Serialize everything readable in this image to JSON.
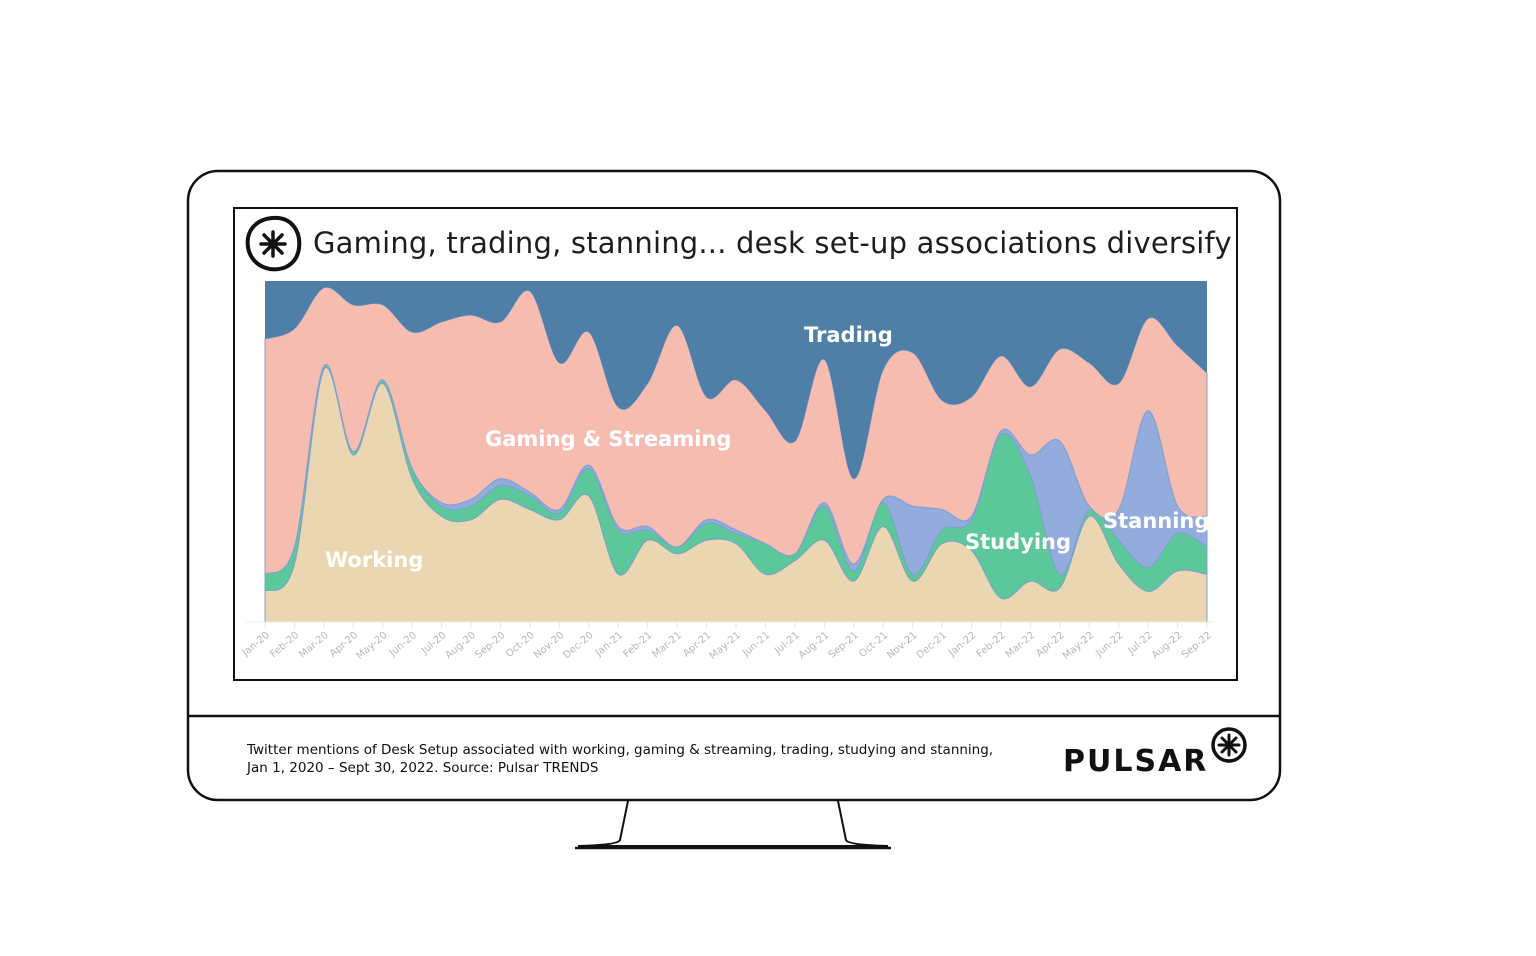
{
  "title": "Gaming, trading, stanning... desk set-up associations diversify",
  "caption": {
    "line1": "Twitter mentions of Desk Setup associated with working, gaming & streaming, trading, studying and stanning,",
    "line2": "Jan 1, 2020 – Sept 30, 2022. Source: Pulsar TRENDS"
  },
  "brand": "PULSAR",
  "chart_data": {
    "type": "area",
    "stacked": "percent",
    "ylim": [
      0,
      100
    ],
    "grid": false,
    "categories": [
      "Jan-20",
      "Feb-20",
      "Mar-20",
      "Apr-20",
      "May-20",
      "Jun-20",
      "Jul-20",
      "Aug-20",
      "Sep-20",
      "Oct-20",
      "Nov-20",
      "Dec-20",
      "Jan-21",
      "Feb-21",
      "Mar-21",
      "Apr-21",
      "May-21",
      "Jun-21",
      "Jul-21",
      "Aug-21",
      "Sep-21",
      "Oct-21",
      "Nov-21",
      "Dec-21",
      "Jan-22",
      "Feb-22",
      "Mar-22",
      "Apr-22",
      "May-22",
      "Jun-22",
      "Jul-22",
      "Aug-22",
      "Sep-22"
    ],
    "series": [
      {
        "name": "Working",
        "color": "#ead7b1",
        "values": [
          9,
          17,
          74,
          49,
          70,
          42,
          31,
          30,
          36,
          33,
          30,
          37,
          14,
          24,
          20,
          24,
          23,
          14,
          18,
          24,
          12,
          28,
          12,
          23,
          21,
          7,
          12,
          10,
          31,
          17,
          9,
          15,
          14
        ]
      },
      {
        "name": "Studying",
        "color": "#5cc89a",
        "values": [
          5,
          5,
          1,
          1,
          1,
          3,
          3,
          4,
          4,
          4,
          2,
          8,
          13,
          3,
          2,
          5,
          3,
          9,
          2,
          10,
          3,
          7,
          2,
          4,
          9,
          48,
          31,
          4,
          2,
          7,
          7,
          11,
          8
        ]
      },
      {
        "name": "Stanning",
        "color": "#93acdd",
        "values": [
          0,
          0,
          0,
          0,
          0,
          0,
          1,
          2,
          2,
          1,
          1,
          1,
          1,
          1,
          0,
          1,
          1,
          0,
          0,
          1,
          2,
          1,
          20,
          6,
          1,
          1,
          6,
          39,
          1,
          9,
          46,
          8,
          9
        ]
      },
      {
        "name": "Gaming & Streaming",
        "color": "#f6bcb0",
        "values": [
          69,
          64,
          23,
          43,
          22,
          40,
          53,
          54,
          46,
          59,
          43,
          39,
          35,
          42,
          65,
          36,
          44,
          39,
          33,
          42,
          25,
          38,
          45,
          32,
          35,
          22,
          20,
          27,
          42,
          37,
          27,
          47,
          42
        ]
      },
      {
        "name": "Trading",
        "color": "#4f7ea6",
        "values": [
          17,
          14,
          2,
          7,
          7,
          15,
          12,
          10,
          12,
          3,
          24,
          15,
          37,
          30,
          13,
          34,
          29,
          38,
          47,
          23,
          58,
          26,
          21,
          35,
          34,
          22,
          31,
          20,
          24,
          30,
          11,
          19,
          27
        ]
      }
    ]
  }
}
